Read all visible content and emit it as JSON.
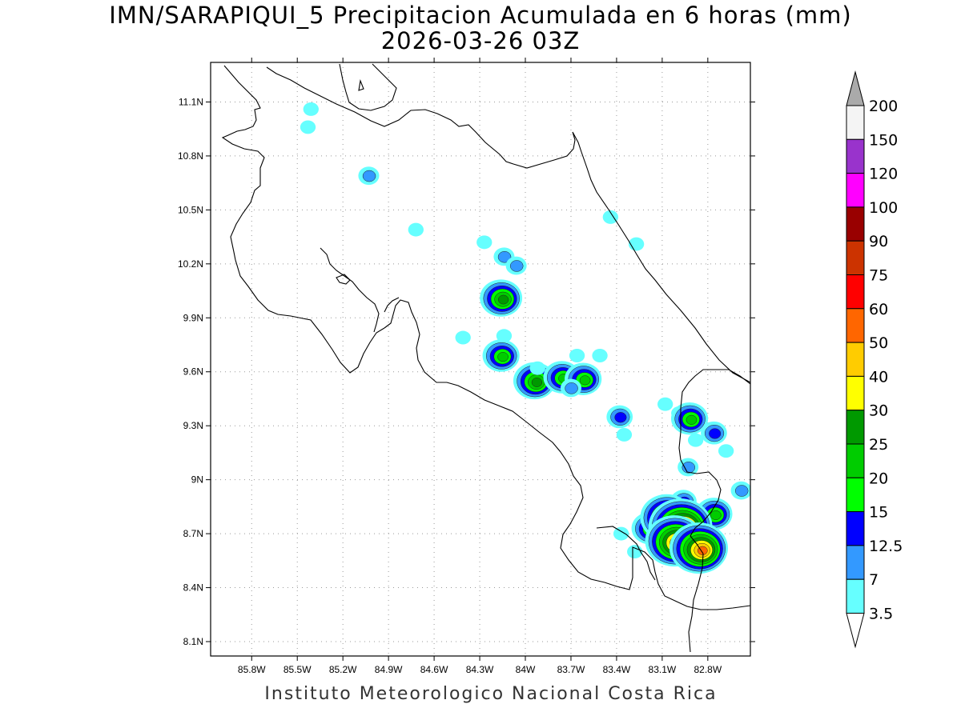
{
  "title_line1": "IMN/SARAPIQUI_5 Precipitacion Acumulada en 6 horas (mm)",
  "title_line2": "2026-03-26 03Z",
  "footer": "Instituto Meteorologico Nacional Costa Rica",
  "map": {
    "lon_range": [
      -86.07,
      -82.52
    ],
    "lat_range": [
      8.02,
      11.32
    ],
    "lon_ticks": [
      {
        "value": -85.8,
        "label": "85.8W"
      },
      {
        "value": -85.5,
        "label": "85.5W"
      },
      {
        "value": -85.2,
        "label": "85.2W"
      },
      {
        "value": -84.9,
        "label": "84.9W"
      },
      {
        "value": -84.6,
        "label": "84.6W"
      },
      {
        "value": -84.3,
        "label": "84.3W"
      },
      {
        "value": -84.0,
        "label": "84W"
      },
      {
        "value": -83.7,
        "label": "83.7W"
      },
      {
        "value": -83.4,
        "label": "83.4W"
      },
      {
        "value": -83.1,
        "label": "83.1W"
      },
      {
        "value": -82.8,
        "label": "82.8W"
      }
    ],
    "lat_ticks": [
      {
        "value": 8.1,
        "label": "8.1N"
      },
      {
        "value": 8.4,
        "label": "8.4N"
      },
      {
        "value": 8.7,
        "label": "8.7N"
      },
      {
        "value": 9.0,
        "label": "9N"
      },
      {
        "value": 9.3,
        "label": "9.3N"
      },
      {
        "value": 9.6,
        "label": "9.6N"
      },
      {
        "value": 9.9,
        "label": "9.9N"
      },
      {
        "value": 10.2,
        "label": "10.2N"
      },
      {
        "value": 10.5,
        "label": "10.5N"
      },
      {
        "value": 10.8,
        "label": "10.8N"
      },
      {
        "value": 11.1,
        "label": "11.1N"
      }
    ],
    "grid": true
  },
  "colorbar": {
    "labels": [
      "3.5",
      "7",
      "12.5",
      "15",
      "20",
      "25",
      "30",
      "40",
      "50",
      "60",
      "75",
      "90",
      "100",
      "120",
      "150",
      "200"
    ],
    "colors": [
      "#ffffff",
      "#66ffff",
      "#3399ff",
      "#0000ff",
      "#00ff00",
      "#00cc00",
      "#009900",
      "#ffff00",
      "#ffcc00",
      "#ff6600",
      "#ff0000",
      "#cc3300",
      "#990000",
      "#ff00ff",
      "#9933cc",
      "#f4f4f4",
      "#aaaaaa"
    ]
  },
  "precip_cells": [
    {
      "lon": -85.43,
      "lat": 10.96,
      "value": 3.5
    },
    {
      "lon": -85.41,
      "lat": 11.06,
      "value": 3.5
    },
    {
      "lon": -85.03,
      "lat": 10.69,
      "value": 7
    },
    {
      "lon": -84.72,
      "lat": 10.39,
      "value": 3.5
    },
    {
      "lon": -84.27,
      "lat": 10.32,
      "value": 3.5
    },
    {
      "lon": -84.14,
      "lat": 10.24,
      "value": 7
    },
    {
      "lon": -84.06,
      "lat": 10.19,
      "value": 7
    },
    {
      "lon": -84.16,
      "lat": 10.01,
      "value": 25
    },
    {
      "lon": -84.14,
      "lat": 9.8,
      "value": 3.5
    },
    {
      "lon": -84.41,
      "lat": 9.79,
      "value": 3.5
    },
    {
      "lon": -84.16,
      "lat": 9.69,
      "value": 20
    },
    {
      "lon": -83.94,
      "lat": 9.55,
      "value": 25
    },
    {
      "lon": -83.76,
      "lat": 9.57,
      "value": 20
    },
    {
      "lon": -83.62,
      "lat": 9.56,
      "value": 20
    },
    {
      "lon": -83.66,
      "lat": 9.69,
      "value": 3.5
    },
    {
      "lon": -83.51,
      "lat": 9.69,
      "value": 3.5
    },
    {
      "lon": -83.44,
      "lat": 10.46,
      "value": 3.5
    },
    {
      "lon": -83.27,
      "lat": 10.31,
      "value": 3.5
    },
    {
      "lon": -83.38,
      "lat": 9.35,
      "value": 12.5
    },
    {
      "lon": -83.35,
      "lat": 9.25,
      "value": 3.5
    },
    {
      "lon": -83.08,
      "lat": 9.42,
      "value": 3.5
    },
    {
      "lon": -82.99,
      "lat": 9.37,
      "value": 3.5
    },
    {
      "lon": -82.92,
      "lat": 9.34,
      "value": 20
    },
    {
      "lon": -82.88,
      "lat": 9.22,
      "value": 3.5
    },
    {
      "lon": -82.76,
      "lat": 9.26,
      "value": 12.5
    },
    {
      "lon": -82.68,
      "lat": 9.16,
      "value": 3.5
    },
    {
      "lon": -82.93,
      "lat": 9.07,
      "value": 7
    },
    {
      "lon": -82.96,
      "lat": 8.88,
      "value": 12.5
    },
    {
      "lon": -82.58,
      "lat": 8.94,
      "value": 7
    },
    {
      "lon": -82.76,
      "lat": 8.81,
      "value": 20
    },
    {
      "lon": -83.18,
      "lat": 8.73,
      "value": 20
    },
    {
      "lon": -83.07,
      "lat": 8.79,
      "value": 40
    },
    {
      "lon": -82.98,
      "lat": 8.74,
      "value": 60
    },
    {
      "lon": -83.02,
      "lat": 8.66,
      "value": 50
    },
    {
      "lon": -82.86,
      "lat": 8.62,
      "value": 50
    },
    {
      "lon": -83.37,
      "lat": 8.7,
      "value": 3.5
    },
    {
      "lon": -83.28,
      "lat": 8.6,
      "value": 3.5
    },
    {
      "lon": -83.92,
      "lat": 9.62,
      "value": 3.5
    },
    {
      "lon": -83.7,
      "lat": 9.51,
      "value": 7
    }
  ]
}
